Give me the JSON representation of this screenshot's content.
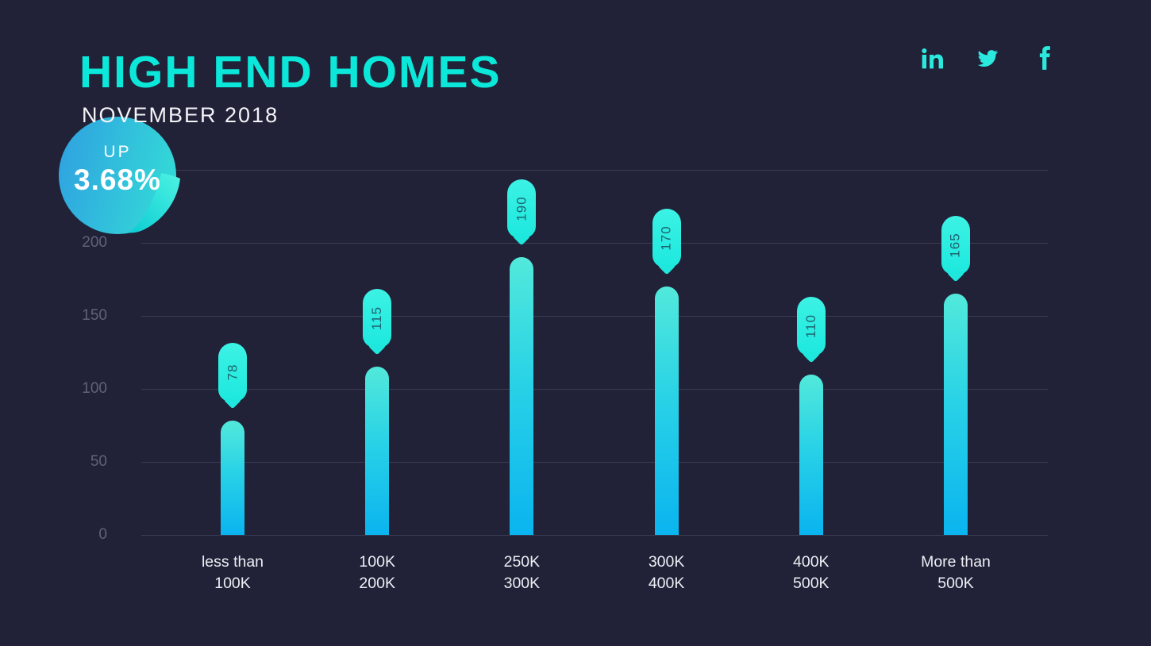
{
  "header": {
    "title": "HIGH END HOMES",
    "subtitle": "NOVEMBER 2018",
    "social": [
      {
        "name": "linkedin"
      },
      {
        "name": "twitter"
      },
      {
        "name": "facebook"
      }
    ]
  },
  "badge": {
    "direction_label": "UP",
    "value": "3.68%"
  },
  "chart_data": {
    "type": "bar",
    "title": "HIGH END HOMES",
    "subtitle": "NOVEMBER 2018",
    "categories": [
      "less than 100K",
      "100K 200K",
      "250K 300K",
      "300K 400K",
      "400K 500K",
      "More than 500K"
    ],
    "categories_lines": [
      [
        "less than",
        "100K"
      ],
      [
        "100K",
        "200K"
      ],
      [
        "250K",
        "300K"
      ],
      [
        "300K",
        "400K"
      ],
      [
        "400K",
        "500K"
      ],
      [
        "More than",
        "500K"
      ]
    ],
    "values": [
      78,
      115,
      190,
      170,
      110,
      165
    ],
    "xlabel": "",
    "ylabel": "",
    "ylim": [
      0,
      250
    ],
    "yticks_labeled": [
      0,
      50,
      100,
      150,
      200
    ],
    "gridline_values": [
      0,
      50,
      100,
      150,
      200,
      250
    ],
    "grid": true,
    "legend": false,
    "colors": {
      "background": "#212237",
      "accent_cyan": "#0be8da",
      "bar_gradient_top": "#52e9db",
      "bar_gradient_bottom": "#0ab4ef",
      "value_pill": "#2bf0e2",
      "value_pill_text": "#1e6570",
      "gridline": "#3a3d54",
      "ytick_text": "#5f627a",
      "xtick_text": "#edeff5",
      "badge_blue": "#2f9fe1",
      "badge_teal": "#33d6d8",
      "badge_fold": "#4df3e2"
    }
  }
}
